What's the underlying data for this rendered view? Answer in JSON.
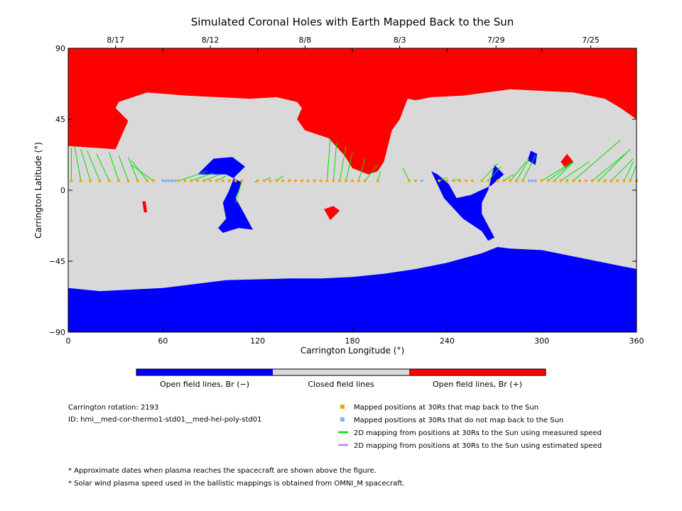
{
  "chart_data": {
    "type": "map",
    "title": "Simulated Coronal Holes with Earth Mapped Back to the Sun",
    "xlabel": "Carrington Longitude (°)",
    "ylabel": "Carrington Latitude (°)",
    "xlim": [
      0,
      360
    ],
    "ylim": [
      -90,
      90
    ],
    "x_ticks": [
      "0",
      "60",
      "120",
      "180",
      "240",
      "300",
      "360"
    ],
    "y_ticks": [
      "90",
      "45",
      "0",
      "-45",
      "-90"
    ],
    "top_dates": [
      {
        "label": "8/17",
        "lon": 30
      },
      {
        "label": "8/12",
        "lon": 90
      },
      {
        "label": "8/8",
        "lon": 150
      },
      {
        "label": "8/3",
        "lon": 210
      },
      {
        "label": "7/29",
        "lon": 271
      },
      {
        "label": "7/25",
        "lon": 331
      }
    ],
    "colorbar": [
      {
        "label": "Open field lines, Br (−)",
        "color": "#0000ff"
      },
      {
        "label": "Closed field lines",
        "color": "#d9d9d9"
      },
      {
        "label": "Open field lines, Br (+)",
        "color": "#ff0000"
      }
    ],
    "regions": {
      "south_polar_hole": {
        "color": "#0000ff",
        "boundary": [
          [
            0,
            -62
          ],
          [
            20,
            -64
          ],
          [
            40,
            -63
          ],
          [
            60,
            -62
          ],
          [
            100,
            -57
          ],
          [
            140,
            -56
          ],
          [
            160,
            -56
          ],
          [
            180,
            -55
          ],
          [
            200,
            -53
          ],
          [
            220,
            -50
          ],
          [
            240,
            -46
          ],
          [
            262,
            -40
          ],
          [
            272,
            -36
          ],
          [
            280,
            -37
          ],
          [
            300,
            -38
          ],
          [
            330,
            -44
          ],
          [
            350,
            -48
          ],
          [
            360,
            -50
          ]
        ]
      },
      "north_polar_hole": {
        "color": "#ff0000",
        "boundary": [
          [
            0,
            28
          ],
          [
            15,
            27
          ],
          [
            30,
            26
          ],
          [
            38,
            44
          ],
          [
            30,
            52
          ],
          [
            32,
            56
          ],
          [
            50,
            62
          ],
          [
            75,
            60
          ],
          [
            95,
            59
          ],
          [
            115,
            58
          ],
          [
            132,
            59
          ],
          [
            145,
            56
          ],
          [
            148,
            52
          ],
          [
            145,
            45
          ],
          [
            150,
            38
          ],
          [
            165,
            33
          ],
          [
            175,
            22
          ],
          [
            180,
            14
          ],
          [
            190,
            10
          ],
          [
            196,
            12
          ],
          [
            200,
            18
          ],
          [
            205,
            38
          ],
          [
            210,
            45
          ],
          [
            215,
            58
          ],
          [
            220,
            57
          ],
          [
            230,
            59
          ],
          [
            250,
            60
          ],
          [
            280,
            64
          ],
          [
            320,
            62
          ],
          [
            340,
            58
          ],
          [
            350,
            52
          ],
          [
            360,
            45
          ]
        ]
      },
      "south_extension": {
        "color": "#0000ff",
        "boundary": [
          [
            230,
            12
          ],
          [
            238,
            -5
          ],
          [
            250,
            -18
          ],
          [
            262,
            -26
          ],
          [
            266,
            -32
          ],
          [
            270,
            -30
          ],
          [
            262,
            -15
          ],
          [
            262,
            -8
          ],
          [
            266,
            0
          ],
          [
            270,
            16
          ],
          [
            276,
            10
          ],
          [
            268,
            3
          ],
          [
            255,
            -3
          ],
          [
            246,
            -5
          ],
          [
            241,
            4
          ],
          [
            234,
            10
          ]
        ]
      },
      "equatorial_holes": [
        {
          "color": "#0000ff",
          "boundary": [
            [
              82,
              10
            ],
            [
              92,
              20
            ],
            [
              104,
              21
            ],
            [
              112,
              15
            ],
            [
              105,
              8
            ],
            [
              102,
              0
            ],
            [
              98,
              -8
            ],
            [
              100,
              -18
            ],
            [
              95,
              -24
            ],
            [
              98,
              -27
            ],
            [
              108,
              -24
            ],
            [
              117,
              -25
            ],
            [
              110,
              -12
            ],
            [
              106,
              -5
            ],
            [
              110,
              5
            ],
            [
              100,
              10
            ]
          ]
        },
        {
          "color": "#0000ff",
          "boundary": [
            [
              291,
              19
            ],
            [
              293,
              25
            ],
            [
              297,
              23
            ],
            [
              296,
              16
            ]
          ]
        },
        {
          "color": "#ff0000",
          "boundary": [
            [
              312,
              18
            ],
            [
              316,
              23
            ],
            [
              320,
              18
            ],
            [
              315,
              14
            ]
          ]
        },
        {
          "color": "#ff0000",
          "boundary": [
            [
              47,
              -7
            ],
            [
              48,
              -14
            ],
            [
              50,
              -14
            ],
            [
              49,
              -7
            ]
          ]
        },
        {
          "color": "#ff0000",
          "boundary": [
            [
              162,
              -12
            ],
            [
              166,
              -19
            ],
            [
              172,
              -13
            ],
            [
              168,
              -10
            ]
          ]
        }
      ]
    },
    "mapped_points": {
      "footpoint_lat": 6,
      "maps_back_color": "#f0a800",
      "no_map_color": "#7fb5ff",
      "maps_back_lon": [
        2,
        8,
        14,
        20,
        26,
        32,
        38,
        44,
        50,
        54,
        70,
        74,
        78,
        82,
        86,
        90,
        94,
        98,
        102,
        106,
        110,
        120,
        124,
        128,
        132,
        136,
        140,
        144,
        148,
        152,
        156,
        160,
        164,
        168,
        172,
        176,
        180,
        184,
        188,
        196,
        216,
        220,
        235,
        240,
        244,
        248,
        252,
        256,
        262,
        266,
        272,
        276,
        280,
        284,
        288,
        300,
        304,
        308,
        312,
        316,
        320,
        324,
        328,
        332,
        336,
        340,
        344,
        348,
        352,
        356,
        360
      ],
      "no_map_lon": [
        60,
        62,
        64,
        66,
        68,
        224,
        292,
        294,
        296
      ]
    },
    "mapping_lines": [
      [
        2,
        27,
        2,
        6
      ],
      [
        4,
        28,
        8,
        6
      ],
      [
        8,
        26,
        14,
        6
      ],
      [
        12,
        25,
        20,
        6
      ],
      [
        18,
        23,
        26,
        6
      ],
      [
        26,
        24,
        32,
        6
      ],
      [
        32,
        22,
        38,
        6
      ],
      [
        38,
        21,
        44,
        6
      ],
      [
        40,
        19,
        50,
        6
      ],
      [
        40,
        16,
        54,
        6
      ],
      [
        88,
        12,
        70,
        6
      ],
      [
        92,
        11,
        78,
        6
      ],
      [
        96,
        10,
        86,
        6
      ],
      [
        100,
        9,
        94,
        6
      ],
      [
        106,
        -8,
        110,
        6
      ],
      [
        118,
        5,
        120,
        6
      ],
      [
        128,
        8,
        124,
        6
      ],
      [
        136,
        9,
        132,
        6
      ],
      [
        166,
        33,
        164,
        6
      ],
      [
        170,
        30,
        168,
        6
      ],
      [
        176,
        28,
        172,
        6
      ],
      [
        180,
        24,
        176,
        6
      ],
      [
        188,
        20,
        184,
        6
      ],
      [
        196,
        16,
        188,
        6
      ],
      [
        198,
        12,
        196,
        6
      ],
      [
        212,
        14,
        216,
        6
      ],
      [
        240,
        8,
        235,
        6
      ],
      [
        248,
        7,
        244,
        6
      ],
      [
        272,
        17,
        262,
        6
      ],
      [
        274,
        15,
        266,
        6
      ],
      [
        282,
        10,
        276,
        6
      ],
      [
        290,
        18,
        280,
        6
      ],
      [
        292,
        20,
        284,
        6
      ],
      [
        296,
        22,
        288,
        6
      ],
      [
        318,
        17,
        300,
        6
      ],
      [
        320,
        18,
        304,
        6
      ],
      [
        320,
        18,
        308,
        6
      ],
      [
        330,
        18,
        312,
        6
      ],
      [
        350,
        32,
        320,
        6
      ],
      [
        354,
        24,
        332,
        6
      ],
      [
        356,
        26,
        336,
        6
      ],
      [
        358,
        20,
        344,
        6
      ],
      [
        358,
        18,
        352,
        6
      ],
      [
        360,
        16,
        356,
        6
      ]
    ],
    "legend": [
      {
        "marker": "square",
        "color": "#f0a800",
        "label": "Mapped positions at 30Rs that map back to the Sun"
      },
      {
        "marker": "square",
        "color": "#7fb5ff",
        "label": "Mapped positions at 30Rs that do not map back to the Sun"
      },
      {
        "marker": "line",
        "color": "#00e000",
        "label": "2D mapping from positions at 30Rs to the Sun using measured speed"
      },
      {
        "marker": "line",
        "color": "#c080f0",
        "label": "2D mapping from positions at 30Rs to the Sun using estimated speed"
      }
    ]
  },
  "info": {
    "rotation": "Carrington rotation: 2193",
    "id": "ID: hmi__med-cor-thermo1-std01__med-hel-poly-std01"
  },
  "notes": [
    "* Approximate dates when plasma reaches the spacecraft are shown above the figure.",
    "* Solar wind plasma speed used in the ballistic mappings is obtained from OMNI_M spacecraft."
  ]
}
